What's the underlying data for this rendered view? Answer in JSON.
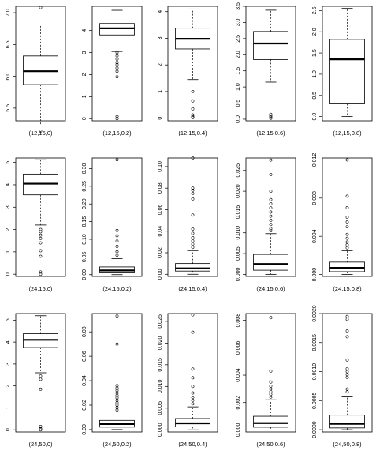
{
  "chart_data": [
    {
      "type": "boxplot",
      "xlabel": "(12,15,0)",
      "ylim": [
        5.3,
        7.1
      ],
      "yticks": [
        {
          "v": 5.5,
          "label": "5.5"
        },
        {
          "v": 6.0,
          "label": "6.0"
        },
        {
          "v": 6.5,
          "label": "6.5"
        },
        {
          "v": 7.0,
          "label": "7.0"
        }
      ],
      "box": {
        "whisker_low": 5.22,
        "q1": 5.87,
        "median": 6.08,
        "q3": 6.32,
        "whisker_high": 6.82
      },
      "outliers": [
        5.14,
        7.08
      ]
    },
    {
      "type": "boxplot",
      "xlabel": "(12,15,0.2)",
      "ylim": [
        -0.1,
        5.1
      ],
      "yticks": [
        {
          "v": 0,
          "label": "0"
        },
        {
          "v": 1,
          "label": "1"
        },
        {
          "v": 2,
          "label": "2"
        },
        {
          "v": 3,
          "label": "3"
        },
        {
          "v": 4,
          "label": "4"
        }
      ],
      "box": {
        "whisker_low": 3.05,
        "q1": 3.8,
        "median": 4.1,
        "q3": 4.32,
        "whisker_high": 4.92
      },
      "outliers": [
        3.0,
        2.85,
        2.7,
        2.55,
        2.45,
        2.3,
        2.15,
        1.9,
        0.1,
        0.0
      ]
    },
    {
      "type": "boxplot",
      "xlabel": "(12,15,0.4)",
      "ylim": [
        -0.1,
        4.2
      ],
      "yticks": [
        {
          "v": 0,
          "label": "0"
        },
        {
          "v": 1,
          "label": "1"
        },
        {
          "v": 2,
          "label": "2"
        },
        {
          "v": 3,
          "label": "3"
        },
        {
          "v": 4,
          "label": "4"
        }
      ],
      "box": {
        "whisker_low": 1.45,
        "q1": 2.6,
        "median": 2.98,
        "q3": 3.38,
        "whisker_high": 4.1
      },
      "outliers": [
        1.0,
        0.65,
        0.35,
        0.12,
        0.05,
        0.02
      ]
    },
    {
      "type": "boxplot",
      "xlabel": "(12,15,0.6)",
      "ylim": [
        -0.05,
        3.5
      ],
      "yticks": [
        {
          "v": 0,
          "label": "0.0"
        },
        {
          "v": 0.5,
          "label": "0.5"
        },
        {
          "v": 1.0,
          "label": "1.0"
        },
        {
          "v": 1.5,
          "label": "1.5"
        },
        {
          "v": 2.0,
          "label": "2.0"
        },
        {
          "v": 2.5,
          "label": "2.5"
        },
        {
          "v": 3.0,
          "label": "3.0"
        },
        {
          "v": 3.5,
          "label": "3.5"
        }
      ],
      "box": {
        "whisker_low": 1.15,
        "q1": 1.85,
        "median": 2.35,
        "q3": 2.72,
        "whisker_high": 3.38
      },
      "outliers": [
        0.15,
        0.1,
        0.06,
        0.03
      ]
    },
    {
      "type": "boxplot",
      "xlabel": "(12,15,0.8)",
      "ylim": [
        -0.1,
        2.6
      ],
      "yticks": [
        {
          "v": 0,
          "label": "0.0"
        },
        {
          "v": 0.5,
          "label": "0.5"
        },
        {
          "v": 1.0,
          "label": "1.0"
        },
        {
          "v": 1.5,
          "label": "1.5"
        },
        {
          "v": 2.0,
          "label": "2.0"
        },
        {
          "v": 2.5,
          "label": "2.5"
        }
      ],
      "box": {
        "whisker_low": 0.0,
        "q1": 0.3,
        "median": 1.35,
        "q3": 1.82,
        "whisker_high": 2.55
      },
      "outliers": []
    },
    {
      "type": "boxplot",
      "xlabel": "(24,15,0)",
      "ylim": [
        -0.1,
        5.2
      ],
      "yticks": [
        {
          "v": 0,
          "label": "0"
        },
        {
          "v": 1,
          "label": "1"
        },
        {
          "v": 2,
          "label": "2"
        },
        {
          "v": 3,
          "label": "3"
        },
        {
          "v": 4,
          "label": "4"
        },
        {
          "v": 5,
          "label": "5"
        }
      ],
      "box": {
        "whisker_low": 2.2,
        "q1": 3.55,
        "median": 4.05,
        "q3": 4.48,
        "whisker_high": 5.12
      },
      "outliers": [
        2.0,
        1.9,
        1.75,
        1.6,
        1.4,
        1.05,
        0.8,
        0.1,
        0.0
      ]
    },
    {
      "type": "boxplot",
      "xlabel": "(24,15,0.2)",
      "ylim": [
        -0.005,
        0.33
      ],
      "yticks": [
        {
          "v": 0,
          "label": "0.00"
        },
        {
          "v": 0.05,
          "label": "0.05"
        },
        {
          "v": 0.1,
          "label": "0.10"
        },
        {
          "v": 0.15,
          "label": "0.15"
        },
        {
          "v": 0.2,
          "label": "0.20"
        },
        {
          "v": 0.25,
          "label": "0.25"
        },
        {
          "v": 0.3,
          "label": "0.30"
        }
      ],
      "box": {
        "whisker_low": 0.0,
        "q1": 0.005,
        "median": 0.012,
        "q3": 0.022,
        "whisker_high": 0.045
      },
      "outliers": [
        0.055,
        0.065,
        0.08,
        0.095,
        0.11,
        0.125,
        0.325
      ]
    },
    {
      "type": "boxplot",
      "xlabel": "(24,15,0.4)",
      "ylim": [
        -0.002,
        0.108
      ],
      "yticks": [
        {
          "v": 0,
          "label": "0.00"
        },
        {
          "v": 0.02,
          "label": "0.02"
        },
        {
          "v": 0.04,
          "label": "0.04"
        },
        {
          "v": 0.06,
          "label": "0.06"
        },
        {
          "v": 0.08,
          "label": "0.08"
        },
        {
          "v": 0.1,
          "label": "0.10"
        }
      ],
      "box": {
        "whisker_low": 0.0,
        "q1": 0.003,
        "median": 0.0055,
        "q3": 0.01,
        "whisker_high": 0.022
      },
      "outliers": [
        0.025,
        0.028,
        0.031,
        0.034,
        0.038,
        0.042,
        0.055,
        0.07,
        0.075,
        0.078,
        0.08,
        0.108
      ]
    },
    {
      "type": "boxplot",
      "xlabel": "(24,15,0.6)",
      "ylim": [
        -0.0005,
        0.028
      ],
      "yticks": [
        {
          "v": 0,
          "label": "0.000"
        },
        {
          "v": 0.005,
          "label": "0.005"
        },
        {
          "v": 0.01,
          "label": "0.010"
        },
        {
          "v": 0.015,
          "label": "0.015"
        },
        {
          "v": 0.02,
          "label": "0.020"
        },
        {
          "v": 0.025,
          "label": "0.025"
        }
      ],
      "box": {
        "whisker_low": 0.0,
        "q1": 0.001,
        "median": 0.0025,
        "q3": 0.0048,
        "whisker_high": 0.0098
      },
      "outliers": [
        0.0105,
        0.011,
        0.012,
        0.013,
        0.014,
        0.015,
        0.016,
        0.017,
        0.018,
        0.02,
        0.024,
        0.0275
      ]
    },
    {
      "type": "boxplot",
      "xlabel": "(24,15,0.8)",
      "ylim": [
        -0.0002,
        0.0122
      ],
      "yticks": [
        {
          "v": 0,
          "label": "0.000"
        },
        {
          "v": 0.004,
          "label": "0.004"
        },
        {
          "v": 0.008,
          "label": "0.008"
        },
        {
          "v": 0.012,
          "label": "0.012"
        }
      ],
      "box": {
        "whisker_low": 0.0,
        "q1": 0.0003,
        "median": 0.0007,
        "q3": 0.0013,
        "whisker_high": 0.0025
      },
      "outliers": [
        0.0028,
        0.0031,
        0.0034,
        0.0038,
        0.0042,
        0.005,
        0.0055,
        0.006,
        0.007,
        0.0082,
        0.012
      ]
    },
    {
      "type": "boxplot",
      "xlabel": "(24,50,0)",
      "ylim": [
        -0.1,
        5.3
      ],
      "yticks": [
        {
          "v": 0,
          "label": "0"
        },
        {
          "v": 1,
          "label": "1"
        },
        {
          "v": 2,
          "label": "2"
        },
        {
          "v": 3,
          "label": "3"
        },
        {
          "v": 4,
          "label": "4"
        },
        {
          "v": 5,
          "label": "5"
        }
      ],
      "box": {
        "whisker_low": 2.6,
        "q1": 3.75,
        "median": 4.1,
        "q3": 4.38,
        "whisker_high": 5.2
      },
      "outliers": [
        2.45,
        2.3,
        1.85,
        0.15,
        0.05,
        0.0
      ]
    },
    {
      "type": "boxplot",
      "xlabel": "(24,50,0.2)",
      "ylim": [
        -0.002,
        0.095
      ],
      "yticks": [
        {
          "v": 0,
          "label": "0.00"
        },
        {
          "v": 0.02,
          "label": "0.02"
        },
        {
          "v": 0.04,
          "label": "0.04"
        },
        {
          "v": 0.06,
          "label": "0.06"
        },
        {
          "v": 0.08,
          "label": "0.08"
        }
      ],
      "box": {
        "whisker_low": 0.0,
        "q1": 0.002,
        "median": 0.0045,
        "q3": 0.0075,
        "whisker_high": 0.0145
      },
      "outliers": [
        0.016,
        0.018,
        0.02,
        0.022,
        0.024,
        0.026,
        0.028,
        0.03,
        0.032,
        0.034,
        0.036,
        0.07,
        0.093
      ]
    },
    {
      "type": "boxplot",
      "xlabel": "(24,50,0.4)",
      "ylim": [
        -0.0005,
        0.0268
      ],
      "yticks": [
        {
          "v": 0,
          "label": "0.000"
        },
        {
          "v": 0.005,
          "label": "0.005"
        },
        {
          "v": 0.01,
          "label": "0.010"
        },
        {
          "v": 0.015,
          "label": "0.015"
        },
        {
          "v": 0.02,
          "label": "0.020"
        },
        {
          "v": 0.025,
          "label": "0.025"
        }
      ],
      "box": {
        "whisker_low": 0.0,
        "q1": 0.0007,
        "median": 0.0015,
        "q3": 0.0026,
        "whisker_high": 0.0053
      },
      "outliers": [
        0.006,
        0.0068,
        0.0075,
        0.0085,
        0.01,
        0.012,
        0.014,
        0.0225,
        0.0265
      ]
    },
    {
      "type": "boxplot",
      "xlabel": "(24,50,0.6)",
      "ylim": [
        -0.00015,
        0.0085
      ],
      "yticks": [
        {
          "v": 0,
          "label": "0.000"
        },
        {
          "v": 0.002,
          "label": "0.002"
        },
        {
          "v": 0.004,
          "label": "0.004"
        },
        {
          "v": 0.006,
          "label": "0.006"
        },
        {
          "v": 0.008,
          "label": "0.008"
        }
      ],
      "box": {
        "whisker_low": 0.0,
        "q1": 0.0002,
        "median": 0.0005,
        "q3": 0.001,
        "whisker_high": 0.0022
      },
      "outliers": [
        0.0024,
        0.0026,
        0.0028,
        0.003,
        0.0032,
        0.0035,
        0.0043,
        0.0082
      ]
    },
    {
      "type": "boxplot",
      "xlabel": "(24,50,0.8)",
      "ylim": [
        -4e-05,
        0.002
      ],
      "yticks": [
        {
          "v": 0,
          "label": "0.0000"
        },
        {
          "v": 0.0005,
          "label": "0.0005"
        },
        {
          "v": 0.001,
          "label": "0.0010"
        },
        {
          "v": 0.0015,
          "label": "0.0015"
        },
        {
          "v": 0.002,
          "label": "0.0020"
        }
      ],
      "box": {
        "whisker_low": 0.0,
        "q1": 3e-05,
        "median": 0.0001,
        "q3": 0.00025,
        "whisker_high": 0.00058
      },
      "outliers": [
        0.00065,
        0.0007,
        0.0009,
        0.00095,
        0.001,
        0.00105,
        0.0012,
        0.0016,
        0.0017,
        0.0019,
        0.00195
      ]
    }
  ]
}
